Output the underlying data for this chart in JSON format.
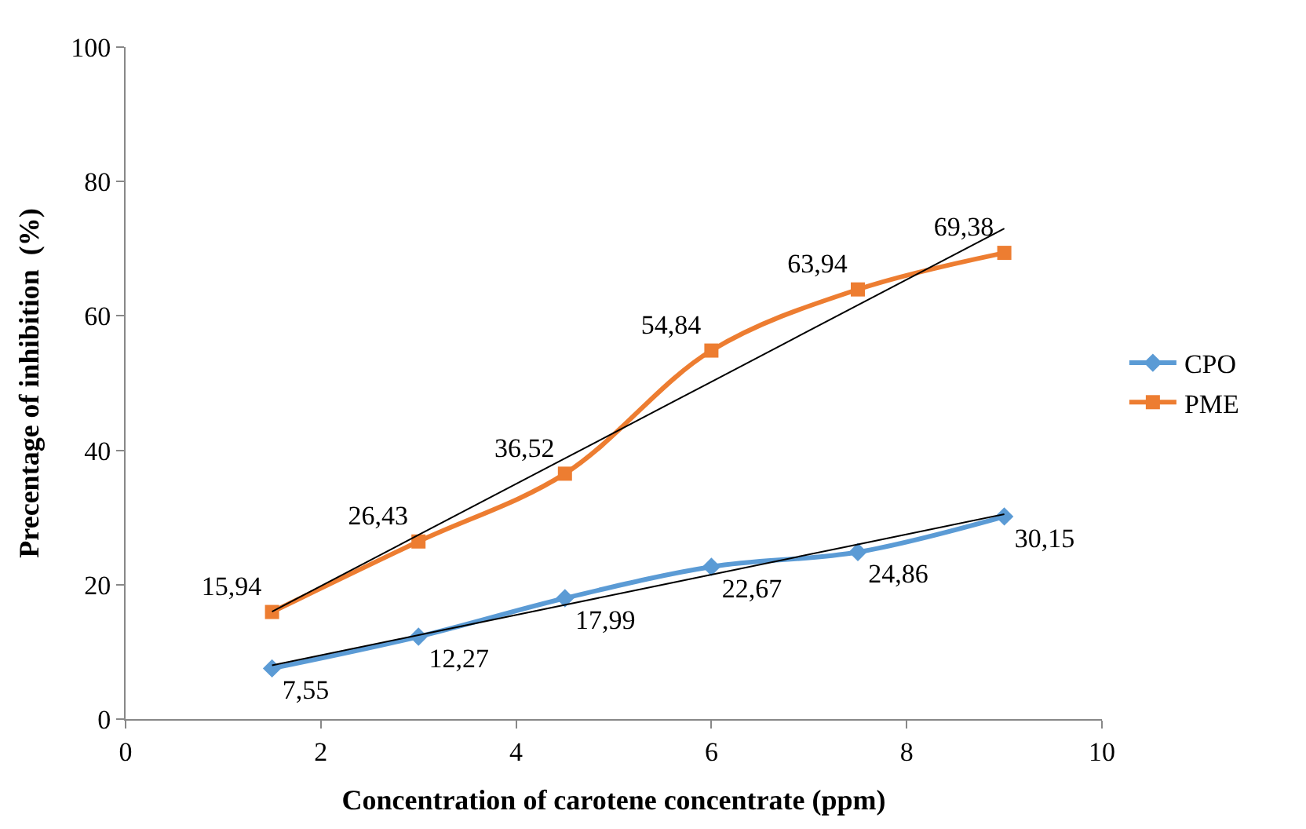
{
  "chart_data": {
    "type": "line",
    "xlabel": "Concentration of carotene concentrate (ppm)",
    "ylabel": "Precentage of inhibition  (%)",
    "x": [
      1.5,
      3,
      4.5,
      6,
      7.5,
      9
    ],
    "xlim": [
      0,
      10
    ],
    "xticks": [
      0,
      2,
      4,
      6,
      8,
      10
    ],
    "ylim": [
      0,
      100
    ],
    "yticks": [
      0,
      20,
      40,
      60,
      80,
      100
    ],
    "legend": "right",
    "series": [
      {
        "name": "CPO",
        "color": "#5b9bd5",
        "marker": "diamond",
        "values": [
          7.55,
          12.27,
          17.99,
          22.67,
          24.86,
          30.15
        ],
        "value_labels": [
          "7,55",
          "12,27",
          "17,99",
          "22,67",
          "24,86",
          "30,15"
        ]
      },
      {
        "name": "PME",
        "color": "#ed7d31",
        "marker": "square",
        "values": [
          15.94,
          26.43,
          36.52,
          54.84,
          63.94,
          69.38
        ],
        "value_labels": [
          "15,94",
          "26,43",
          "36,52",
          "54,84",
          "63,94",
          "69,38"
        ]
      },
      {
        "type": "line",
        "color": "#000000",
        "marker": "none",
        "values": [
          8.0,
          12.5,
          17.0,
          21.5,
          26.0,
          30.5
        ]
      },
      {
        "type": "line",
        "color": "#000000",
        "marker": "none",
        "values": [
          16.0,
          27.4,
          38.8,
          50.2,
          61.6,
          73.0
        ]
      }
    ]
  }
}
